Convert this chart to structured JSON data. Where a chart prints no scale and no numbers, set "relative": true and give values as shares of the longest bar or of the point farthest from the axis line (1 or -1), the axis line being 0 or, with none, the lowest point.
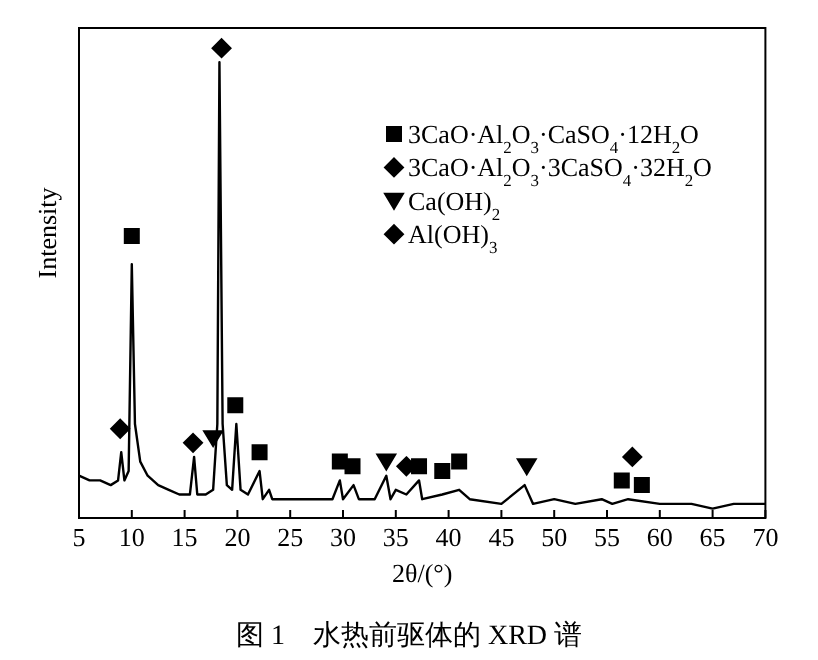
{
  "chart_data": {
    "type": "line",
    "relative": true,
    "xlabel": "2θ/(°)",
    "ylabel": "Intensity",
    "xlim": [
      5,
      70
    ],
    "xticks": [
      5,
      10,
      15,
      20,
      25,
      30,
      35,
      40,
      45,
      50,
      55,
      60,
      65,
      70
    ],
    "legend": "top right",
    "annotations": [
      "图 1　水热前驱体的 XRD 谱"
    ],
    "series": [
      {
        "type": "line",
        "color": "#000000",
        "x": [
          5,
          6,
          7,
          8,
          8.7,
          9.0,
          9.3,
          9.7,
          10.0,
          10.3,
          10.8,
          11.5,
          12.5,
          13.5,
          14.5,
          15.5,
          15.9,
          16.2,
          17,
          17.7,
          18.1,
          18.3,
          18.6,
          19,
          19.5,
          19.9,
          20.3,
          21,
          22.1,
          22.4,
          23,
          23.3,
          25,
          27,
          29,
          29.7,
          30,
          31,
          31.5,
          33,
          34.1,
          34.5,
          35,
          36,
          37.2,
          37.5,
          39.4,
          41,
          42,
          45,
          47.2,
          48,
          50,
          52,
          54.5,
          55.5,
          57,
          60,
          63,
          65,
          67,
          70
        ],
        "values": [
          0.09,
          0.08,
          0.08,
          0.07,
          0.08,
          0.14,
          0.08,
          0.1,
          0.54,
          0.2,
          0.12,
          0.09,
          0.07,
          0.06,
          0.05,
          0.05,
          0.13,
          0.05,
          0.05,
          0.06,
          0.2,
          0.97,
          0.2,
          0.07,
          0.06,
          0.2,
          0.06,
          0.05,
          0.1,
          0.04,
          0.06,
          0.04,
          0.04,
          0.04,
          0.04,
          0.08,
          0.04,
          0.07,
          0.04,
          0.04,
          0.09,
          0.04,
          0.06,
          0.05,
          0.08,
          0.04,
          0.05,
          0.06,
          0.04,
          0.03,
          0.07,
          0.03,
          0.04,
          0.03,
          0.04,
          0.03,
          0.04,
          0.03,
          0.03,
          0.02,
          0.03,
          0.03
        ]
      },
      {
        "type": "scatter",
        "name": "3CaO·Al$_{2}$O$_{3}$·CaSO$_{4}$·12H$_{2}$O",
        "color": "#000000",
        "marker": "square",
        "x": [
          10,
          19.8,
          22.1,
          29.7,
          30.9,
          37.2,
          39.4,
          41.0,
          56.4,
          58.3
        ],
        "values": [
          0.6,
          0.24,
          0.14,
          0.12,
          0.11,
          0.11,
          0.1,
          0.12,
          0.08,
          0.07
        ]
      },
      {
        "type": "scatter",
        "name": "3CaO·Al$_{2}$O$_{3}$·3CaSO$_{4}$·32H$_{2}$O",
        "color": "#000000",
        "marker": "diamond",
        "x": [
          8.9,
          15.8
        ],
        "values": [
          0.19,
          0.16
        ]
      },
      {
        "type": "scatter",
        "name": "Ca(OH)$_{2}$",
        "color": "#000000",
        "marker": "triangle",
        "x": [
          17.7,
          34.1,
          47.4
        ],
        "values": [
          0.17,
          0.12,
          0.11
        ]
      },
      {
        "type": "scatter",
        "name": "Al(OH)$_{3}$",
        "color": "#000000",
        "marker": "diamond",
        "x": [
          18.5,
          36.0,
          57.4
        ],
        "values": [
          1.0,
          0.11,
          0.13
        ]
      }
    ]
  }
}
